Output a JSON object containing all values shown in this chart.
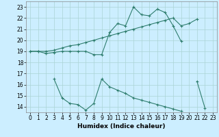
{
  "xlabel": "Humidex (Indice chaleur)",
  "x_values": [
    0,
    1,
    2,
    3,
    4,
    5,
    6,
    7,
    8,
    9,
    10,
    11,
    12,
    13,
    14,
    15,
    16,
    17,
    18,
    19,
    20,
    21,
    22,
    23
  ],
  "line1": [
    19.0,
    19.0,
    18.8,
    18.9,
    19.0,
    19.0,
    19.0,
    19.0,
    18.7,
    18.7,
    20.7,
    21.5,
    21.3,
    23.0,
    22.3,
    22.2,
    22.8,
    22.5,
    21.3,
    19.9,
    null,
    null,
    null,
    null
  ],
  "line2": [
    19.0,
    19.0,
    19.0,
    19.1,
    19.3,
    19.5,
    19.6,
    19.8,
    20.0,
    20.2,
    20.4,
    20.6,
    20.8,
    21.0,
    21.2,
    21.4,
    21.6,
    21.8,
    22.0,
    21.3,
    21.5,
    21.9,
    null,
    null
  ],
  "line3": [
    null,
    null,
    null,
    16.5,
    14.8,
    14.3,
    14.2,
    13.7,
    14.3,
    16.5,
    15.8,
    15.5,
    15.2,
    14.8,
    14.6,
    14.4,
    14.2,
    14.0,
    13.8,
    13.6,
    null,
    16.3,
    13.9,
    null
  ],
  "line_color": "#2e7d6d",
  "bg_color": "#cceeff",
  "grid_color": "#aad4d4",
  "ylim": [
    13.5,
    23.5
  ],
  "xlim": [
    -0.5,
    23.5
  ],
  "yticks": [
    14,
    15,
    16,
    17,
    18,
    19,
    20,
    21,
    22,
    23
  ],
  "xticks": [
    0,
    1,
    2,
    3,
    4,
    5,
    6,
    7,
    8,
    9,
    10,
    11,
    12,
    13,
    14,
    15,
    16,
    17,
    18,
    19,
    20,
    21,
    22,
    23
  ]
}
